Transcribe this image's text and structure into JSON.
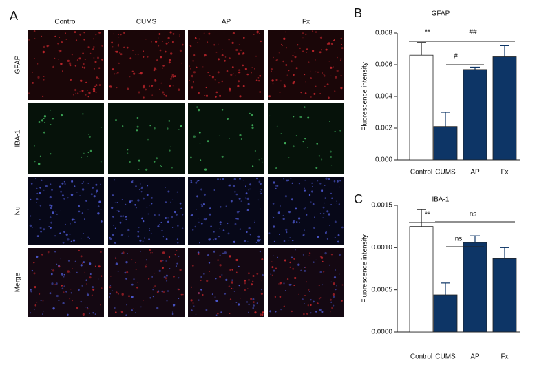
{
  "panel_a": {
    "label": "A",
    "columns": [
      "Control",
      "CUMS",
      "AP",
      "Fx"
    ],
    "rows": [
      "GFAP",
      "IBA-1",
      "Nu",
      "Merge"
    ]
  },
  "chart_data": [
    {
      "type": "bar",
      "panel_label": "B",
      "title": "GFAP",
      "y_label": "Fluorescence intensity",
      "categories": [
        "Control",
        "CUMS",
        "AP",
        "Fx"
      ],
      "values": [
        0.0066,
        0.0021,
        0.0057,
        0.0065
      ],
      "error": [
        0.0008,
        0.0009,
        0.00015,
        0.0007
      ],
      "colors": [
        "#ffffff",
        "#0d3566",
        "#0d3566",
        "#0d3566"
      ],
      "ylim": [
        0,
        0.008
      ],
      "yticks": [
        {
          "value": 0,
          "label": "0.000"
        },
        {
          "value": 0.002,
          "label": "0.002"
        },
        {
          "value": 0.004,
          "label": "0.004"
        },
        {
          "value": 0.006,
          "label": "0.006"
        },
        {
          "value": 0.008,
          "label": "0.008"
        }
      ],
      "annotations": [
        "**",
        "##",
        "#"
      ]
    },
    {
      "type": "bar",
      "panel_label": "C",
      "title": "IBA-1",
      "y_label": "Fluorescence intensity",
      "categories": [
        "Control",
        "CUMS",
        "AP",
        "Fx"
      ],
      "values": [
        0.00125,
        0.00044,
        0.00106,
        0.00087
      ],
      "error": [
        0.0002,
        0.00014,
        8e-05,
        0.00013
      ],
      "colors": [
        "#ffffff",
        "#0d3566",
        "#0d3566",
        "#0d3566"
      ],
      "ylim": [
        0,
        0.0015
      ],
      "yticks": [
        {
          "value": 0,
          "label": "0.0000"
        },
        {
          "value": 0.0005,
          "label": "0.0005"
        },
        {
          "value": 0.001,
          "label": "0.0010"
        },
        {
          "value": 0.0015,
          "label": "0.0015"
        }
      ],
      "annotations": [
        "**",
        "ns",
        "ns"
      ]
    }
  ]
}
